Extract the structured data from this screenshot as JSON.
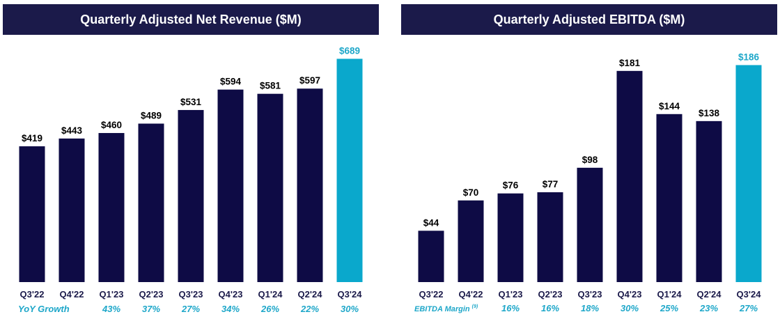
{
  "colors": {
    "bar": "#0e0b45",
    "highlight": "#0aa8cc",
    "title_bg": "#1b1a4a",
    "metric_text": "#1ea7c9"
  },
  "chart_data": [
    {
      "type": "bar",
      "title": "Quarterly Adjusted Net Revenue ($M)",
      "categories": [
        "Q3'22",
        "Q4'22",
        "Q1'23",
        "Q2'23",
        "Q3'23",
        "Q4'23",
        "Q1'24",
        "Q2'24",
        "Q3'24"
      ],
      "values": [
        419,
        443,
        460,
        489,
        531,
        594,
        581,
        597,
        689
      ],
      "value_labels": [
        "$419",
        "$443",
        "$460",
        "$489",
        "$531",
        "$594",
        "$581",
        "$597",
        "$689"
      ],
      "highlight_index": 8,
      "metric_row": {
        "name": "YoY Growth",
        "footnote": "",
        "values": [
          "",
          "",
          "43%",
          "37%",
          "27%",
          "34%",
          "26%",
          "22%",
          "30%"
        ]
      },
      "xlabel": "",
      "ylabel": "",
      "ylim": [
        0,
        720
      ],
      "grid": false,
      "legend": "none"
    },
    {
      "type": "bar",
      "title": "Quarterly Adjusted EBITDA ($M)",
      "categories": [
        "Q3'22",
        "Q4'22",
        "Q1'23",
        "Q2'23",
        "Q3'23",
        "Q4'23",
        "Q1'24",
        "Q2'24",
        "Q3'24"
      ],
      "values": [
        44,
        70,
        76,
        77,
        98,
        181,
        144,
        138,
        186
      ],
      "value_labels": [
        "$44",
        "$70",
        "$76",
        "$77",
        "$98",
        "$181",
        "$144",
        "$138",
        "$186"
      ],
      "highlight_index": 8,
      "metric_row": {
        "name": "EBITDA Margin",
        "footnote": "(9)",
        "values": [
          "",
          "",
          "16%",
          "16%",
          "18%",
          "30%",
          "25%",
          "23%",
          "27%"
        ]
      },
      "xlabel": "",
      "ylabel": "",
      "ylim": [
        0,
        200
      ],
      "grid": false,
      "legend": "none"
    }
  ]
}
